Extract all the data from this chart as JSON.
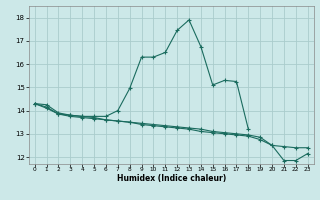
{
  "title": "",
  "xlabel": "Humidex (Indice chaleur)",
  "bg_color": "#cce8e8",
  "grid_color": "#aacccc",
  "line_color": "#1a6b5e",
  "xlim": [
    -0.5,
    23.5
  ],
  "ylim": [
    11.7,
    18.5
  ],
  "yticks": [
    12,
    13,
    14,
    15,
    16,
    17,
    18
  ],
  "xticks": [
    0,
    1,
    2,
    3,
    4,
    5,
    6,
    7,
    8,
    9,
    10,
    11,
    12,
    13,
    14,
    15,
    16,
    17,
    18,
    19,
    20,
    21,
    22,
    23
  ],
  "line1_x": [
    0,
    1,
    2,
    3,
    4,
    5,
    6,
    7,
    8,
    9,
    10,
    11,
    12,
    13,
    14,
    15,
    16,
    17,
    18
  ],
  "line1_y": [
    14.3,
    14.25,
    13.9,
    13.8,
    13.75,
    13.75,
    13.75,
    14.0,
    14.95,
    16.3,
    16.3,
    16.5,
    17.45,
    17.9,
    16.75,
    15.1,
    15.3,
    15.25,
    13.2
  ],
  "line2_x": [
    0,
    1,
    2,
    3,
    4,
    5,
    6,
    7,
    8,
    9,
    10,
    11,
    12,
    13,
    14,
    15,
    16,
    17,
    18,
    19,
    20,
    21,
    22,
    23
  ],
  "line2_y": [
    14.3,
    14.15,
    13.85,
    13.8,
    13.75,
    13.7,
    13.6,
    13.55,
    13.5,
    13.4,
    13.35,
    13.3,
    13.25,
    13.2,
    13.1,
    13.05,
    13.0,
    12.95,
    12.9,
    12.75,
    12.5,
    11.85,
    11.85,
    12.15
  ],
  "line3_x": [
    0,
    1,
    2,
    3,
    4,
    5,
    6,
    7,
    8,
    9,
    10,
    11,
    12,
    13,
    14,
    15,
    16,
    17,
    18,
    19,
    20,
    21,
    22,
    23
  ],
  "line3_y": [
    14.3,
    14.1,
    13.85,
    13.75,
    13.7,
    13.65,
    13.6,
    13.55,
    13.5,
    13.45,
    13.4,
    13.35,
    13.3,
    13.25,
    13.2,
    13.1,
    13.05,
    13.0,
    12.95,
    12.85,
    12.5,
    12.45,
    12.4,
    12.4
  ]
}
